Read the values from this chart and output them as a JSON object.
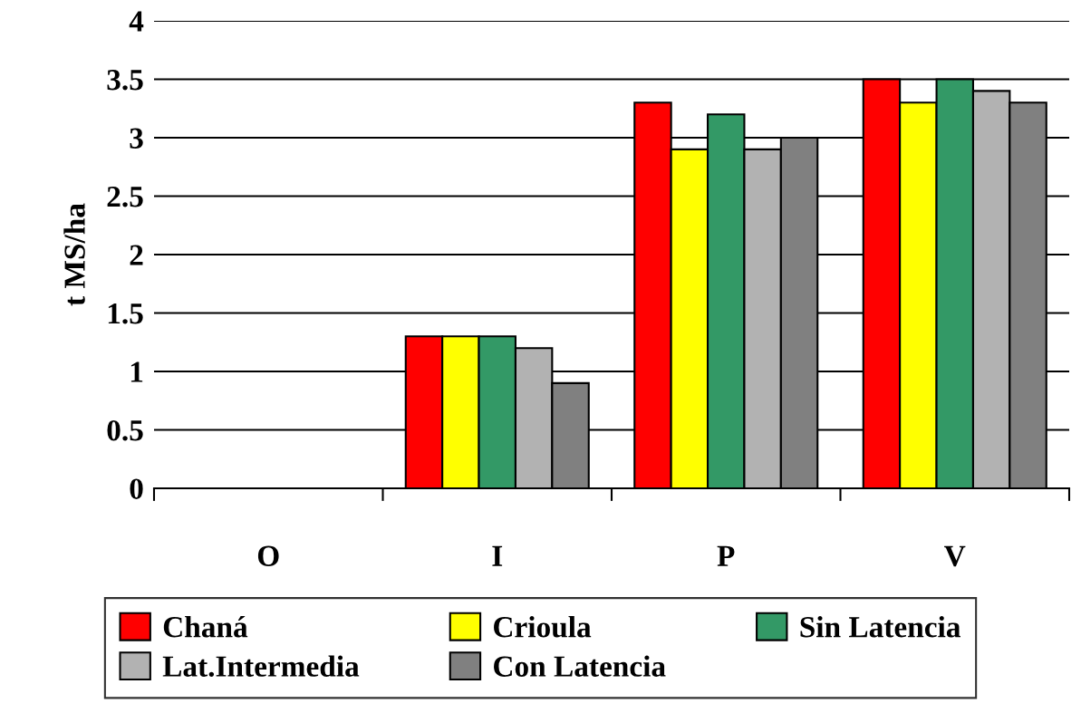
{
  "chart_data": {
    "type": "bar",
    "ylabel": "t MS/ha",
    "categories": [
      "O",
      "I",
      "P",
      "V"
    ],
    "series": [
      {
        "name": "Chaná",
        "color": "#ff0000",
        "values": [
          null,
          1.3,
          3.3,
          3.5
        ]
      },
      {
        "name": "Crioula",
        "color": "#ffff00",
        "values": [
          null,
          1.3,
          2.9,
          3.3
        ]
      },
      {
        "name": "Sin Latencia",
        "color": "#339966",
        "values": [
          null,
          1.3,
          3.2,
          3.5
        ]
      },
      {
        "name": "Lat.Intermedia",
        "color": "#b2b2b2",
        "values": [
          null,
          1.2,
          2.9,
          3.4
        ]
      },
      {
        "name": "Con Latencia",
        "color": "#808080",
        "values": [
          null,
          0.9,
          3.0,
          3.3
        ]
      }
    ],
    "ylim": [
      0,
      4
    ],
    "yticks": [
      0,
      0.5,
      1,
      1.5,
      2,
      2.5,
      3,
      3.5,
      4
    ],
    "grid": "y",
    "legend": "bottom"
  }
}
